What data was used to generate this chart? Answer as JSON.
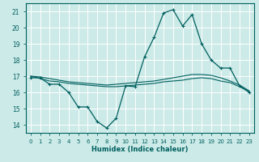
{
  "xlabel": "Humidex (Indice chaleur)",
  "ylabel": "",
  "bg_color": "#cceae7",
  "grid_color": "#ffffff",
  "line_color": "#006060",
  "xlim": [
    -0.5,
    23.5
  ],
  "ylim": [
    13.5,
    21.5
  ],
  "yticks": [
    14,
    15,
    16,
    17,
    18,
    19,
    20,
    21
  ],
  "xticks": [
    0,
    1,
    2,
    3,
    4,
    5,
    6,
    7,
    8,
    9,
    10,
    11,
    12,
    13,
    14,
    15,
    16,
    17,
    18,
    19,
    20,
    21,
    22,
    23
  ],
  "series1_x": [
    0,
    1,
    2,
    3,
    4,
    5,
    6,
    7,
    8,
    9,
    10,
    11,
    12,
    13,
    14,
    15,
    16,
    17,
    18,
    19,
    20,
    21,
    22,
    23
  ],
  "series1_y": [
    16.9,
    16.9,
    16.5,
    16.5,
    16.0,
    15.1,
    15.1,
    14.2,
    13.8,
    14.4,
    16.4,
    16.35,
    18.2,
    19.4,
    20.9,
    21.1,
    20.1,
    20.8,
    19.0,
    18.0,
    17.5,
    17.5,
    16.4,
    16.0
  ],
  "series2_x": [
    0,
    1,
    2,
    3,
    4,
    5,
    6,
    7,
    8,
    9,
    10,
    11,
    12,
    13,
    14,
    15,
    16,
    17,
    18,
    19,
    20,
    21,
    22,
    23
  ],
  "series2_y": [
    17.0,
    16.85,
    16.7,
    16.65,
    16.55,
    16.5,
    16.45,
    16.4,
    16.35,
    16.35,
    16.4,
    16.45,
    16.5,
    16.55,
    16.65,
    16.7,
    16.75,
    16.85,
    16.9,
    16.85,
    16.7,
    16.6,
    16.35,
    16.05
  ],
  "series3_x": [
    0,
    1,
    2,
    3,
    4,
    5,
    6,
    7,
    8,
    9,
    10,
    11,
    12,
    13,
    14,
    15,
    16,
    17,
    18,
    19,
    20,
    21,
    22,
    23
  ],
  "series3_y": [
    17.0,
    16.95,
    16.85,
    16.75,
    16.65,
    16.6,
    16.55,
    16.5,
    16.45,
    16.5,
    16.55,
    16.6,
    16.65,
    16.7,
    16.8,
    16.9,
    17.0,
    17.1,
    17.1,
    17.05,
    16.9,
    16.7,
    16.45,
    16.1
  ]
}
